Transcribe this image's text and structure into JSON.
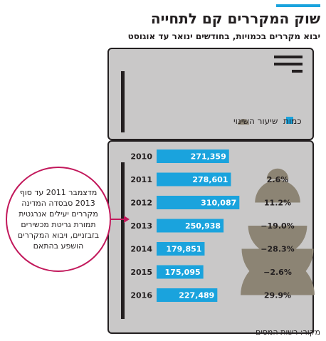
{
  "header": {
    "title": "שוק המקררים קם לתחייה",
    "subtitle": "יבוא מקררים בכמויות, בחודשים ינואר עד אוגוסט"
  },
  "annotation": {
    "text": "מדצמבר 2011 עד סוף 2013 סבסדה המדינה מקררים יעילים אנרגטית תמורת גריטת מכשירים בזבזניים, ויבוא המקררים הושפע בהתאם"
  },
  "source": "מקור: רשות המסים",
  "colors": {
    "bar": "#1aa3dd",
    "semicircle": "#8c8474",
    "fridge_body": "#c9c8c8",
    "fridge_outline": "#231f20",
    "annotation": "#c2185b",
    "background": "#ffffff"
  },
  "chart_data": {
    "type": "bar",
    "orientation": "horizontal",
    "categories": [
      "2010",
      "2011",
      "2012",
      "2013",
      "2014",
      "2015",
      "2016"
    ],
    "series": [
      {
        "name": "כמות",
        "values": [
          271359,
          278601,
          310087,
          250938,
          179851,
          175095,
          227489
        ]
      },
      {
        "name": "שיעור השינוי",
        "values": [
          null,
          2.6,
          11.2,
          -19.0,
          -28.3,
          -2.6,
          29.9
        ]
      }
    ],
    "value_labels": [
      "271,359",
      "278,601",
      "310,087",
      "250,938",
      "179,851",
      "175,095",
      "227,489"
    ],
    "change_labels": [
      "",
      "2.6%",
      "11.2%",
      "−19.0%",
      "−28.3%",
      "−2.6%",
      "29.9%"
    ],
    "legend": {
      "quantity": "כמות",
      "change": "שיעור השינוי",
      "placement": "top-right"
    },
    "xlim": [
      0,
      320000
    ],
    "grid": false
  }
}
